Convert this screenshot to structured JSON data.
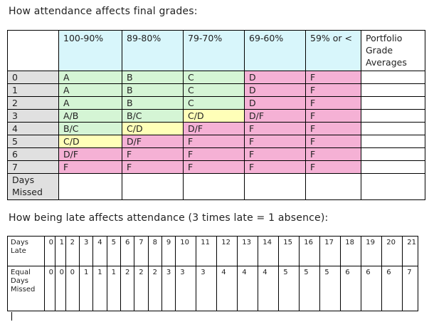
{
  "title_grades": "How attendance affects final grades:",
  "title_late": "How being late affects attendance (3 times late = 1 absence):",
  "grades_table": {
    "columns": [
      "100-90%",
      "89-80%",
      "79-70%",
      "69-60%",
      "59% or <",
      "Portfolio Grade Averages"
    ],
    "days": [
      "0",
      "1",
      "2",
      "3",
      "4",
      "5",
      "6",
      "7"
    ],
    "grades": [
      [
        "A",
        "B",
        "C",
        "D",
        "F"
      ],
      [
        "A",
        "B",
        "C",
        "D",
        "F"
      ],
      [
        "A",
        "B",
        "C",
        "D",
        "F"
      ],
      [
        "A/B",
        "B/C",
        "C/D",
        "D/F",
        "F"
      ],
      [
        "B/C",
        "C/D",
        "D/F",
        "F",
        "F"
      ],
      [
        "C/D",
        "D/F",
        "F",
        "F",
        "F"
      ],
      [
        "D/F",
        "F",
        "F",
        "F",
        "F"
      ],
      [
        "F",
        "F",
        "F",
        "F",
        "F"
      ]
    ],
    "days_missed_label": "Days Missed"
  },
  "late_table": {
    "days_late_label": "Days Late",
    "equal_days_missed_label": "Equal Days Missed",
    "days_late": [
      "0",
      "1",
      "2",
      "3",
      "4",
      "5",
      "6",
      "7",
      "8",
      "9",
      "10",
      "11",
      "12",
      "13",
      "14",
      "15",
      "16",
      "17",
      "18",
      "19",
      "20",
      "21"
    ],
    "days_missed": [
      "0",
      "0",
      "0",
      "1",
      "1",
      "1",
      "2",
      "2",
      "2",
      "3",
      "3",
      "3",
      "4",
      "4",
      "4",
      "5",
      "5",
      "5",
      "6",
      "6",
      "6",
      "7"
    ]
  },
  "colors": {
    "header_cyan": "#d8f6fb",
    "green": "#d5f5d5",
    "yellow": "#ffffb8",
    "pink": "#f5b1d5",
    "gray": "#e0e0e0"
  }
}
